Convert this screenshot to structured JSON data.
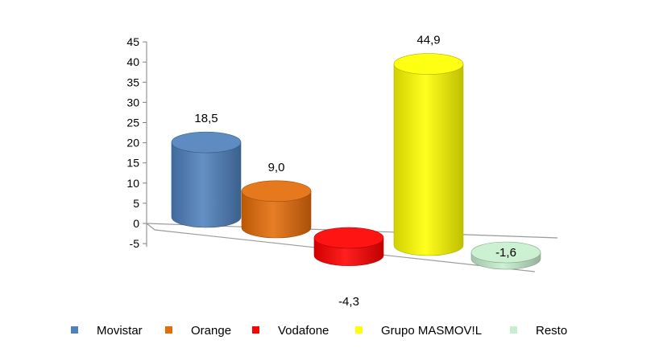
{
  "chart_data": {
    "type": "bar",
    "style": "3d-cylinder",
    "categories": [
      "Movistar",
      "Orange",
      "Vodafone",
      "Grupo MASMOV!L",
      "Resto"
    ],
    "values": [
      18.5,
      9.0,
      -4.3,
      44.9,
      -1.6
    ],
    "value_labels": [
      "18,5",
      "9,0",
      "-4,3",
      "44,9",
      "-1,6"
    ],
    "colors": [
      "#4F81BD",
      "#E46C0A",
      "#FF0000",
      "#FFFF00",
      "#C6EFCE"
    ],
    "ylim": [
      -5,
      45
    ],
    "yticks": [
      "-5",
      "0",
      "5",
      "10",
      "15",
      "20",
      "25",
      "30",
      "35",
      "40",
      "45"
    ],
    "legend_position": "bottom",
    "grid": false
  }
}
